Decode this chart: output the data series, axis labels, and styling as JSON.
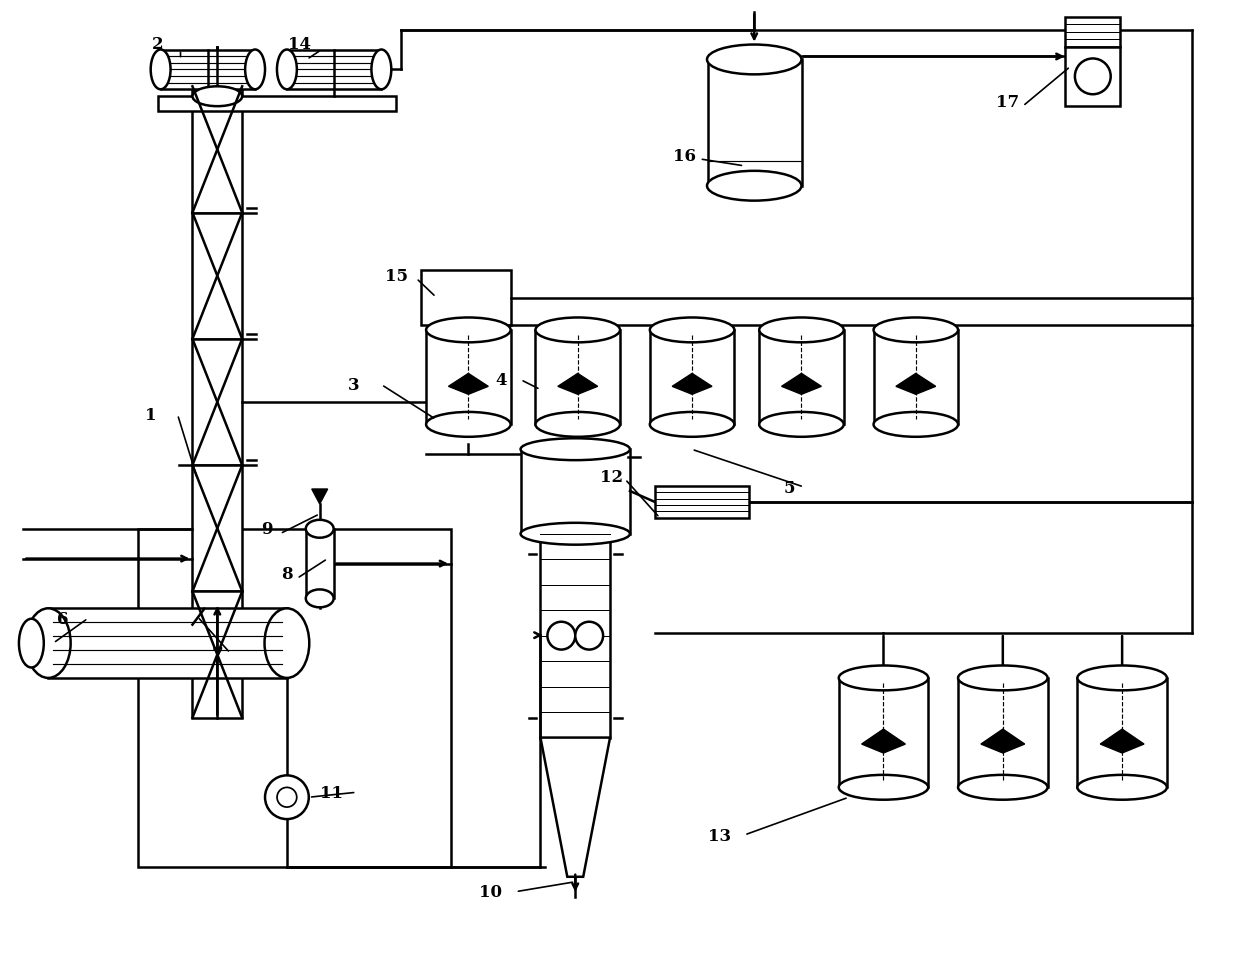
{
  "bg_color": "#ffffff",
  "line_color": "#000000",
  "fig_width": 12.4,
  "fig_height": 9.78,
  "dpi": 100
}
